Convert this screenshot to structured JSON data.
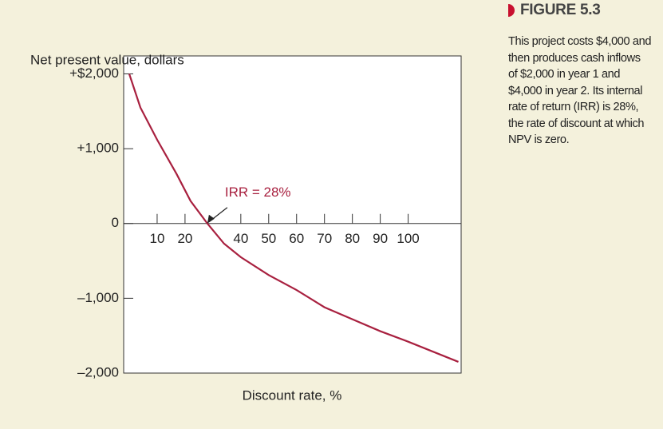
{
  "chart_data": {
    "type": "line",
    "ylabel": "Net present value, dollars",
    "xlabel": "Discount rate, %",
    "x": [
      0,
      4,
      10,
      17,
      22,
      28,
      34,
      40,
      50,
      60,
      70,
      80,
      90,
      100,
      118
    ],
    "series": [
      {
        "color": "#a8203f",
        "values": [
          2000,
          1550,
          1120,
          660,
          300,
          0,
          -270,
          -450,
          -690,
          -890,
          -1120,
          -1280,
          -1440,
          -1580,
          -1850
        ]
      }
    ],
    "xlim": [
      -2,
      119
    ],
    "xticks": [
      10,
      20,
      40,
      50,
      60,
      70,
      80,
      90,
      100
    ],
    "ylim": [
      -2000,
      2240
    ],
    "yticks": [
      {
        "value": -2000,
        "label": "–2,000"
      },
      {
        "value": -1000,
        "label": "–1,000"
      },
      0,
      {
        "value": 1000,
        "label": "+1,000"
      },
      {
        "value": 2000,
        "label": "+$2,000"
      }
    ],
    "annotation": {
      "text": "IRR = 28%",
      "x": 28,
      "y": 0
    }
  },
  "figure": {
    "label": "FIGURE 5.3",
    "caption": "This project costs $4,000 and then produces cash inflows of $2,000 in year 1 and $4,000 in year 2. Its internal rate of return (IRR) is 28%, the rate of discount at which NPV is zero."
  }
}
